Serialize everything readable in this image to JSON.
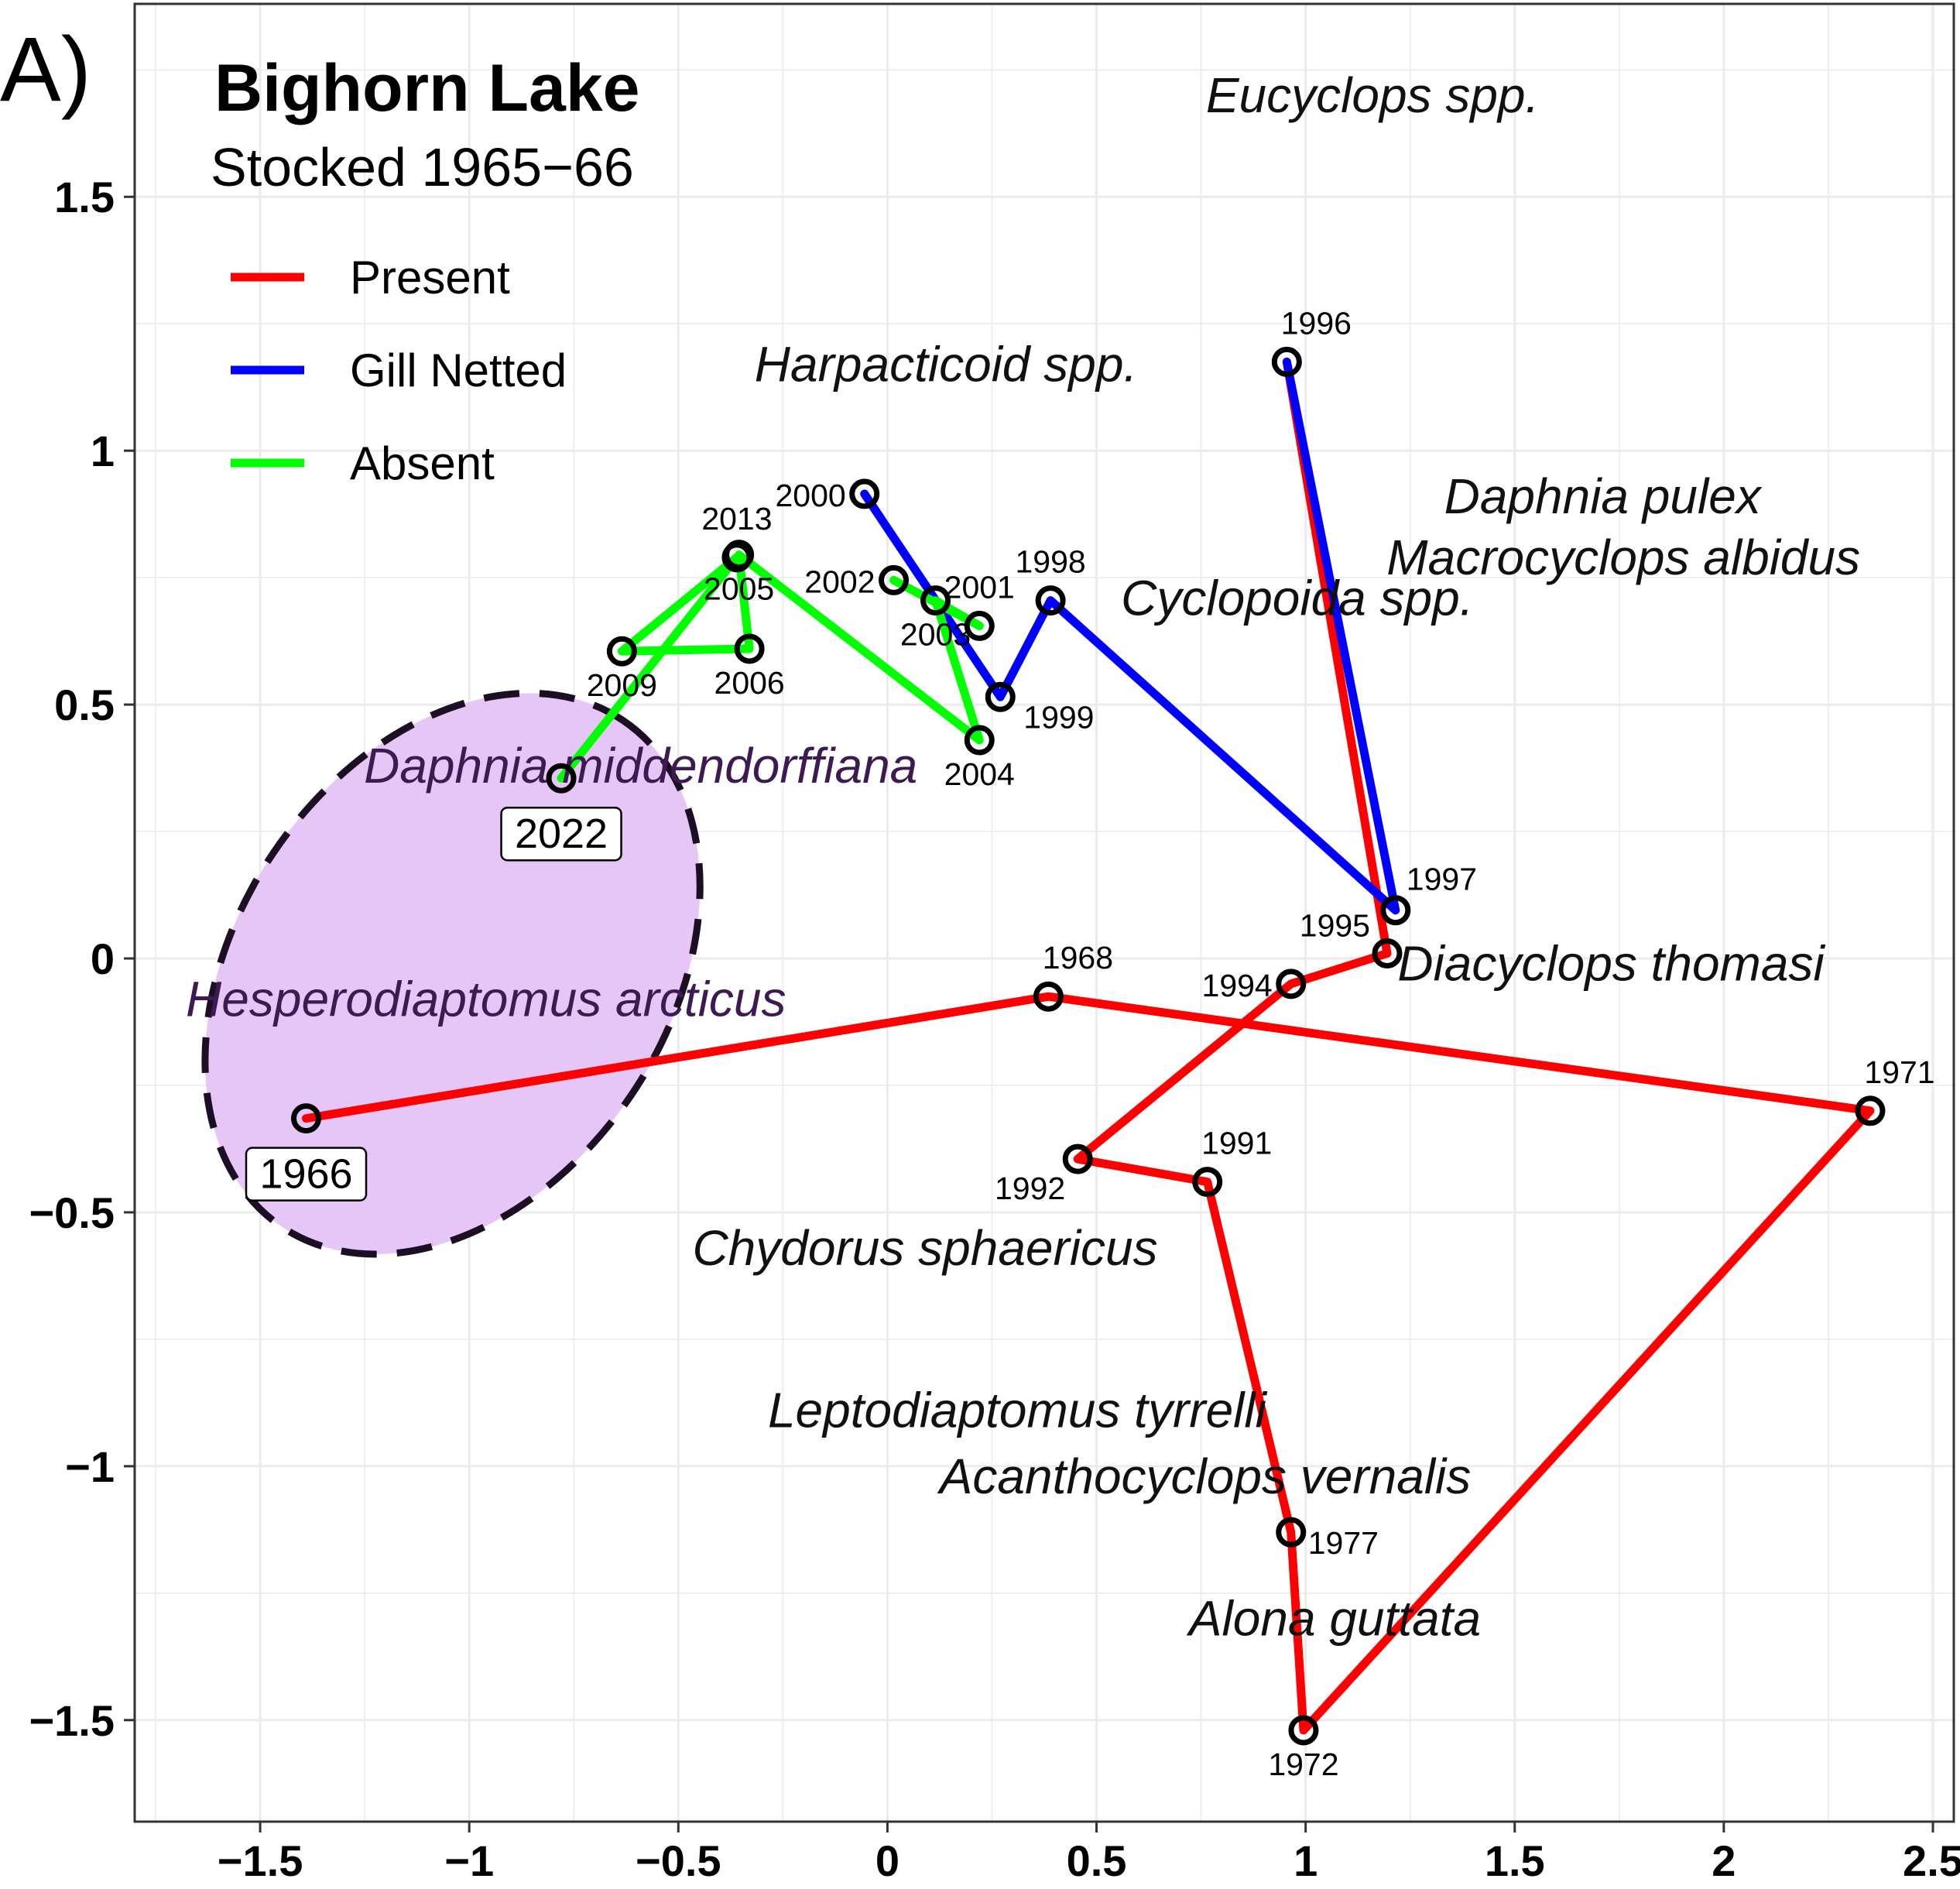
{
  "panel_label": "A)",
  "colors": {
    "present": "#ff0000",
    "gill_netted": "#0000ff",
    "absent": "#00ff00",
    "ellipse_fill": "#e6c6f7",
    "ellipse_stroke": "#1c0f24",
    "grid": "#ebebeb"
  },
  "chart_data": {
    "type": "scatter",
    "title": "Bighorn Lake",
    "subtitle": "Stocked 1965−66",
    "xlim": [
      -1.8,
      2.55
    ],
    "ylim": [
      -1.7,
      1.88
    ],
    "grid": true,
    "legend_placement": "top-left",
    "x_ticks": [
      {
        "value": -1.5,
        "label": "−1.5"
      },
      {
        "value": -1,
        "label": "−1"
      },
      {
        "value": -0.5,
        "label": "−0.5"
      },
      {
        "value": 0,
        "label": "0"
      },
      {
        "value": 0.5,
        "label": "0.5"
      },
      {
        "value": 1,
        "label": "1"
      },
      {
        "value": 1.5,
        "label": "1.5"
      },
      {
        "value": 2,
        "label": "2"
      },
      {
        "value": 2.5,
        "label": "2.5"
      }
    ],
    "y_ticks": [
      {
        "value": -1.5,
        "label": "−1.5"
      },
      {
        "value": -1,
        "label": "−1"
      },
      {
        "value": -0.5,
        "label": "−0.5"
      },
      {
        "value": 0,
        "label": "0"
      },
      {
        "value": 0.5,
        "label": "0.5"
      },
      {
        "value": 1,
        "label": "1"
      },
      {
        "value": 1.5,
        "label": "1.5"
      }
    ],
    "series": [
      {
        "name": "Present",
        "color": "#ff0000",
        "segments": [
          [
            "1966",
            "1968",
            "1971",
            "1972",
            "1977",
            "1991",
            "1992",
            "1994",
            "1995"
          ],
          [
            "1995",
            "1996"
          ]
        ]
      },
      {
        "name": "Gill Netted",
        "color": "#0000ff",
        "segments": [
          [
            "1996",
            "1997",
            "1998",
            "1999",
            "2000"
          ]
        ]
      },
      {
        "name": "Absent",
        "color": "#00ff00",
        "segments": [
          [
            "2001",
            "2002"
          ],
          [
            "2001",
            "2003",
            "2004",
            "2005",
            "2006",
            "2009",
            "2013",
            "2022"
          ]
        ]
      }
    ],
    "points": [
      {
        "year": "1966",
        "x": -1.39,
        "y": -0.315,
        "label_pos": "boxed"
      },
      {
        "year": "1968",
        "x": 0.385,
        "y": -0.075,
        "label_pos": "above"
      },
      {
        "year": "1971",
        "x": 2.35,
        "y": -0.3,
        "label_pos": "above"
      },
      {
        "year": "1972",
        "x": 0.995,
        "y": -1.52,
        "label_pos": "below"
      },
      {
        "year": "1977",
        "x": 0.965,
        "y": -1.13,
        "label_pos": "right"
      },
      {
        "year": "1991",
        "x": 0.765,
        "y": -0.44,
        "label_pos": "above"
      },
      {
        "year": "1992",
        "x": 0.455,
        "y": -0.395,
        "label_pos": "below-left"
      },
      {
        "year": "1994",
        "x": 0.965,
        "y": -0.05,
        "label_pos": "left"
      },
      {
        "year": "1995",
        "x": 1.195,
        "y": 0.01,
        "label_pos": "above-left"
      },
      {
        "year": "1996",
        "x": 0.955,
        "y": 1.175,
        "label_pos": "above"
      },
      {
        "year": "1997",
        "x": 1.215,
        "y": 0.095,
        "label_pos": "above-right"
      },
      {
        "year": "1998",
        "x": 0.39,
        "y": 0.705,
        "label_pos": "above"
      },
      {
        "year": "1999",
        "x": 0.27,
        "y": 0.515,
        "label_pos": "below-right"
      },
      {
        "year": "2000",
        "x": -0.055,
        "y": 0.915,
        "label_pos": "left"
      },
      {
        "year": "2001",
        "x": 0.22,
        "y": 0.655,
        "label_pos": "above"
      },
      {
        "year": "2002",
        "x": 0.015,
        "y": 0.745,
        "label_pos": "left"
      },
      {
        "year": "2003",
        "x": 0.115,
        "y": 0.705,
        "label_pos": "below"
      },
      {
        "year": "2004",
        "x": 0.22,
        "y": 0.43,
        "label_pos": "below"
      },
      {
        "year": "2005",
        "x": -0.355,
        "y": 0.795,
        "label_pos": "below"
      },
      {
        "year": "2006",
        "x": -0.33,
        "y": 0.61,
        "label_pos": "below"
      },
      {
        "year": "2009",
        "x": -0.635,
        "y": 0.605,
        "label_pos": "below"
      },
      {
        "year": "2013",
        "x": -0.36,
        "y": 0.79,
        "label_pos": "above"
      },
      {
        "year": "2022",
        "x": -0.78,
        "y": 0.355,
        "label_pos": "boxed"
      }
    ],
    "species_labels": [
      {
        "text": "Eucyclops spp.",
        "x": 1.16,
        "y": 1.7
      },
      {
        "text": "Harpacticoid spp.",
        "x": 0.14,
        "y": 1.17
      },
      {
        "text": "Daphnia pulex",
        "x": 1.71,
        "y": 0.91
      },
      {
        "text": "Macrocyclops albidus",
        "x": 1.76,
        "y": 0.79
      },
      {
        "text": "Cyclopoida spp.",
        "x": 0.98,
        "y": 0.71
      },
      {
        "text": "Daphnia middendorffiana",
        "x": -0.59,
        "y": 0.38,
        "inside_ellipse": true
      },
      {
        "text": "Diacyclops thomasi",
        "x": 1.73,
        "y": -0.01
      },
      {
        "text": "Hesperodiaptomus arcticus",
        "x": -0.96,
        "y": -0.08,
        "inside_ellipse": true
      },
      {
        "text": "Chydorus sphaericus",
        "x": 0.09,
        "y": -0.57
      },
      {
        "text": "Leptodiaptomus tyrrelli",
        "x": 0.31,
        "y": -0.89
      },
      {
        "text": "Acanthocyclops vernalis",
        "x": 0.76,
        "y": -1.02
      },
      {
        "text": "Alona guttata",
        "x": 1.07,
        "y": -1.3
      }
    ],
    "ellipse": {
      "cx": -1.04,
      "cy": -0.03,
      "rx": 0.73,
      "ry": 0.38,
      "rotation_deg": -56
    }
  }
}
